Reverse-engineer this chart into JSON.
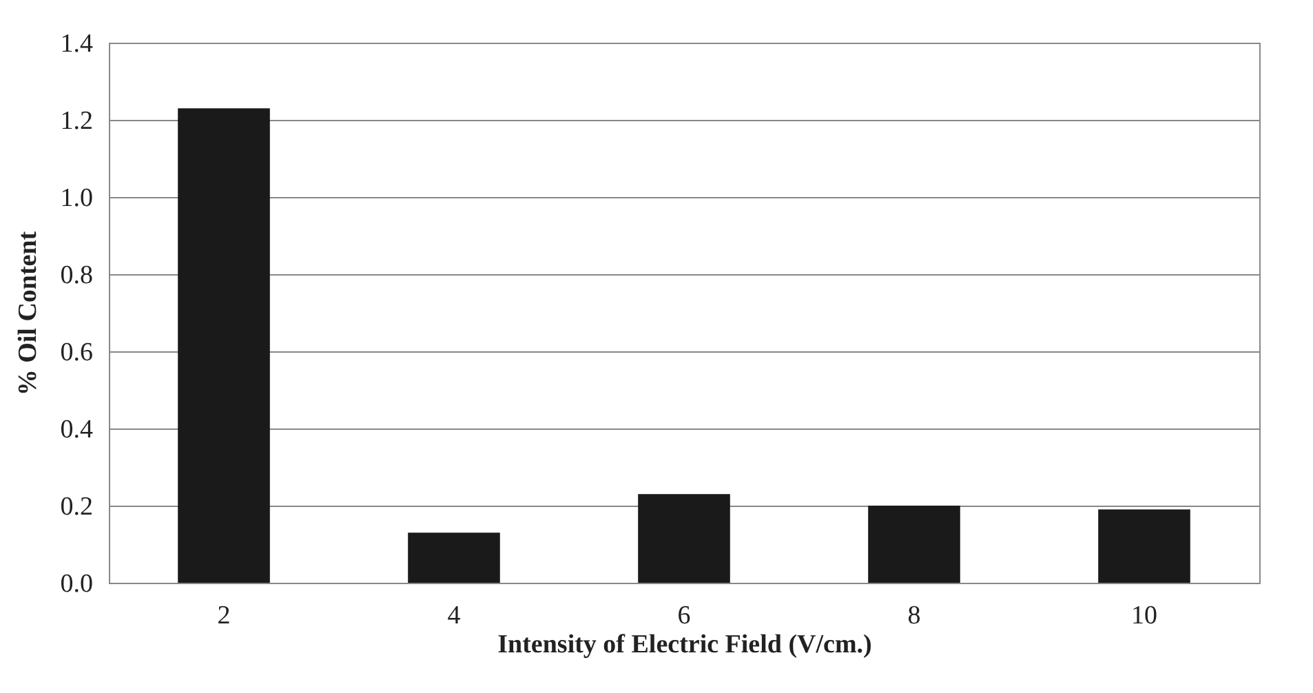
{
  "chart_data": {
    "type": "bar",
    "xlabel": "Intensity of Electric Field (V/cm.)",
    "ylabel": "% Oil Content",
    "categories": [
      "2",
      "4",
      "6",
      "8",
      "10"
    ],
    "values": [
      1.23,
      0.13,
      0.23,
      0.2,
      0.19
    ],
    "color": "#1a1a1a",
    "ylim": [
      0,
      1.4
    ],
    "yticks": [
      {
        "value": 0,
        "label": "0.0"
      },
      0.2,
      0.4,
      0.6,
      0.8,
      {
        "value": 1,
        "label": "1.0"
      },
      1.2,
      1.4
    ],
    "grid": "y"
  }
}
